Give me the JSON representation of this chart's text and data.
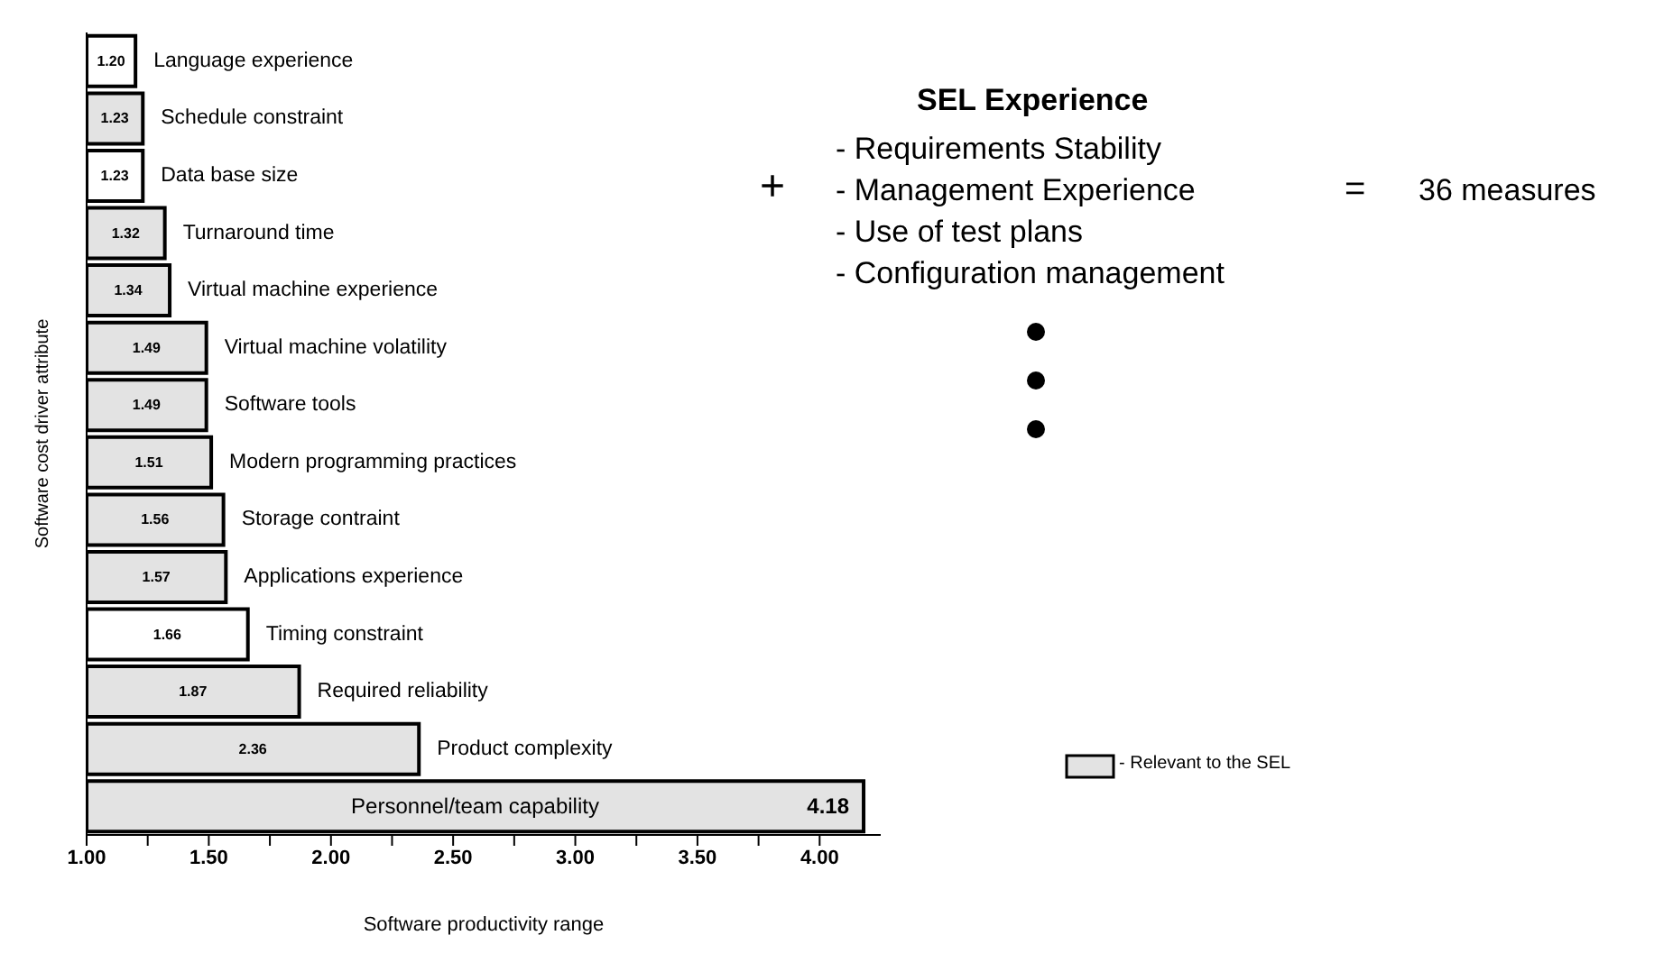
{
  "chart_data": {
    "type": "bar",
    "orientation": "horizontal",
    "xlabel": "Software productivity range",
    "ylabel": "Software cost driver attribute",
    "categories": [
      "Language experience",
      "Schedule constraint",
      "Data base size",
      "Turnaround time",
      "Virtual machine experience",
      "Virtual machine volatility",
      "Software tools",
      "Modern programming practices",
      "Storage contraint",
      "Applications experience",
      "Timing constraint",
      "Required reliability",
      "Product complexity",
      "Personnel/team capability"
    ],
    "values": [
      1.2,
      1.23,
      1.23,
      1.32,
      1.34,
      1.49,
      1.49,
      1.51,
      1.56,
      1.57,
      1.66,
      1.87,
      2.36,
      4.18
    ],
    "colors": [
      "#ffffff",
      "#e3e3e3",
      "#ffffff",
      "#e3e3e3",
      "#e3e3e3",
      "#e3e3e3",
      "#e3e3e3",
      "#e3e3e3",
      "#e3e3e3",
      "#e3e3e3",
      "#ffffff",
      "#e3e3e3",
      "#e3e3e3",
      "#e3e3e3"
    ],
    "value_labels": [
      "1.20",
      "1.23",
      "1.23",
      "1.32",
      "1.34",
      "1.49",
      "1.49",
      "1.51",
      "1.56",
      "1.57",
      "1.66",
      "1.87",
      "2.36",
      "4.18"
    ],
    "xlim": [
      1,
      4.25
    ],
    "xticks": [
      {
        "value": 1,
        "label": "1.00"
      },
      {
        "value": 1.25,
        "label": null
      },
      {
        "value": 1.5,
        "label": "1.50"
      },
      {
        "value": 1.75,
        "label": null
      },
      {
        "value": 2,
        "label": "2.00"
      },
      {
        "value": 2.25,
        "label": null
      },
      {
        "value": 2.5,
        "label": "2.50"
      },
      {
        "value": 2.75,
        "label": null
      },
      {
        "value": 3,
        "label": "3.00"
      },
      {
        "value": 3.25,
        "label": null
      },
      {
        "value": 3.5,
        "label": "3.50"
      },
      {
        "value": 3.75,
        "label": null
      },
      {
        "value": 4,
        "label": "4.00"
      }
    ],
    "annotations": [
      "SEL Experience",
      "- Requirements Stability",
      "- Management Experience",
      "- Use of test plans",
      "- Configuration management",
      "+",
      "=",
      "36 measures",
      "- Relevant to the SEL"
    ]
  }
}
